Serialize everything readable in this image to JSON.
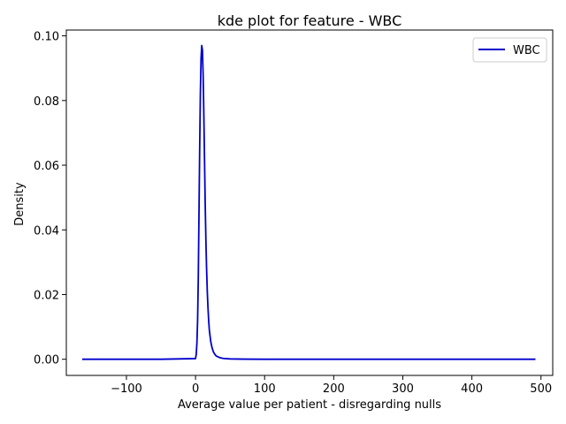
{
  "chart_data": {
    "type": "line",
    "title": "kde plot for feature -  WBC",
    "xlabel": "Average value per patient - disregarding nulls",
    "ylabel": "Density",
    "xlim": [
      -187,
      517
    ],
    "ylim": [
      -0.005,
      0.1018
    ],
    "x_ticks": [
      -100,
      0,
      100,
      200,
      300,
      400,
      500
    ],
    "x_tick_labels": [
      "−100",
      "0",
      "100",
      "200",
      "300",
      "400",
      "500"
    ],
    "y_ticks": [
      0.0,
      0.02,
      0.04,
      0.06,
      0.08,
      0.1
    ],
    "y_tick_labels": [
      "0.00",
      "0.02",
      "0.04",
      "0.06",
      "0.08",
      "0.10"
    ],
    "grid": false,
    "legend_position": "upper-right",
    "series": [
      {
        "name": "WBC",
        "color": "#0000cc",
        "x": [
          -164,
          -50,
          0,
          1,
          2,
          3,
          4,
          5,
          6,
          7,
          8,
          9,
          10,
          11,
          12,
          13,
          14,
          15,
          16,
          17,
          18,
          19,
          20,
          22,
          24,
          26,
          28,
          30,
          35,
          40,
          50,
          70,
          100,
          200,
          300,
          400,
          492
        ],
        "y": [
          0.0,
          0.0,
          0.0002,
          0.0015,
          0.005,
          0.012,
          0.025,
          0.045,
          0.065,
          0.082,
          0.093,
          0.097,
          0.0955,
          0.088,
          0.076,
          0.062,
          0.048,
          0.037,
          0.028,
          0.021,
          0.016,
          0.012,
          0.009,
          0.0055,
          0.0035,
          0.0022,
          0.0015,
          0.001,
          0.0005,
          0.00025,
          0.0001,
          3e-05,
          0.0,
          0.0,
          0.0,
          0.0,
          0.0
        ]
      }
    ]
  }
}
